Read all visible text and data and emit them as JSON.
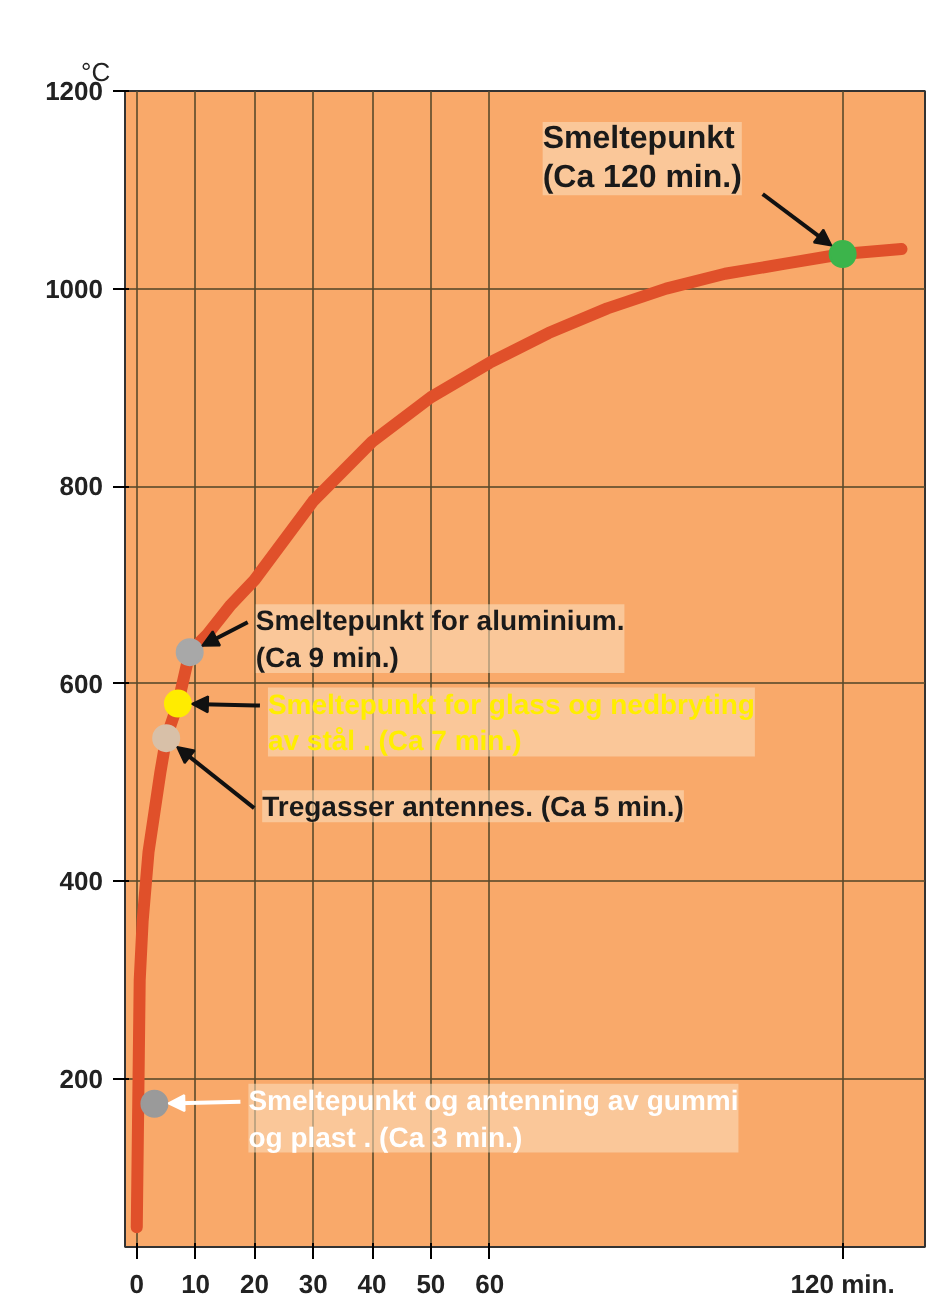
{
  "chart_data": {
    "type": "line",
    "ylabel": "°C",
    "xlim": [
      -2,
      134
    ],
    "ylim": [
      30,
      1200
    ],
    "xticks": [
      0,
      10,
      20,
      30,
      40,
      50,
      60,
      {
        "value": 120,
        "label": "120 min."
      }
    ],
    "yticks": [
      200,
      400,
      600,
      800,
      1000,
      1200
    ],
    "grid": true,
    "series": [
      {
        "type": "line",
        "color": "#e0502a",
        "x": [
          0,
          0.5,
          1,
          2,
          3,
          4,
          5,
          7,
          9,
          12,
          16,
          20,
          30,
          40,
          50,
          60,
          70,
          80,
          90,
          100,
          110,
          120,
          130
        ],
        "values": [
          50,
          300,
          360,
          430,
          470,
          510,
          545,
          580,
          632,
          650,
          680,
          705,
          785,
          845,
          890,
          925,
          955,
          980,
          1000,
          1015,
          1025,
          1035,
          1040
        ]
      },
      {
        "type": "scatter",
        "x": [
          3,
          5,
          7,
          9,
          120
        ],
        "values": [
          175,
          545,
          580,
          632,
          1035
        ],
        "colors": [
          "#9a9a9a",
          "#d8c0a8",
          "#ffec00",
          "#a8a8a8",
          "#3cb44b"
        ]
      }
    ],
    "annotations": [
      {
        "text": "Smeltepunkt for aluminium.\n(Ca 9 min.)",
        "x": 9,
        "y": 632
      },
      {
        "text": "Smeltepunkt for glass og nedbryting\nav stål . (Ca 7 min.)",
        "x": 7,
        "y": 580
      },
      {
        "text": "Tregasser antennes. (Ca 5 min.)",
        "x": 5,
        "y": 545
      },
      {
        "text": "Smeltepunkt og antenning av gummi\nog plast . (Ca 3 min.)",
        "x": 3,
        "y": 175
      },
      {
        "text": "Smeltepunkt\n(Ca 120 min.)",
        "x": 120,
        "y": 1035
      }
    ]
  }
}
